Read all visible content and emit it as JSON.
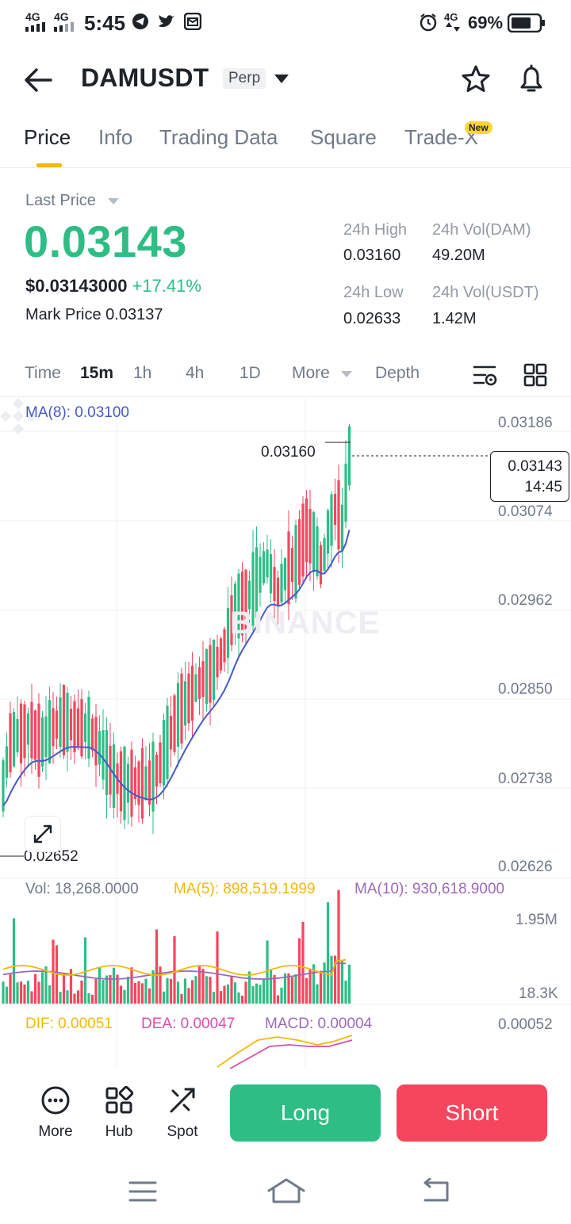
{
  "status_bar": {
    "net1": "4G",
    "net2": "4G",
    "time": "5:45",
    "net3": "4G",
    "battery": "69%"
  },
  "header": {
    "symbol": "DAMUSDT",
    "badge": "Perp"
  },
  "tabs": [
    {
      "label": "Price"
    },
    {
      "label": "Info"
    },
    {
      "label": "Trading Data"
    },
    {
      "label": "Square"
    },
    {
      "label": "Trade-X"
    }
  ],
  "new_badge": "New",
  "price": {
    "last_price_label": "Last Price",
    "last_price": "0.03143",
    "usd_price": "$0.03143000",
    "change": "+17.41%",
    "mark_price_label": "Mark Price",
    "mark_price": "0.03137",
    "stats": {
      "high_label": "24h High",
      "high": "0.03160",
      "vol_dam_label": "24h Vol(DAM)",
      "vol_dam": "49.20M",
      "low_label": "24h Low",
      "low": "0.02633",
      "vol_usdt_label": "24h Vol(USDT)",
      "vol_usdt": "1.42M"
    }
  },
  "intervals": {
    "time": "Time",
    "m15": "15m",
    "h1": "1h",
    "h4": "4h",
    "d1": "1D",
    "more": "More",
    "depth": "Depth"
  },
  "chart": {
    "ma8_text": "MA(8): 0.03100",
    "y_labels": [
      "0.03186",
      "0.03074",
      "0.02962",
      "0.02850",
      "0.02738",
      "0.02626"
    ],
    "high_marker": "0.03160",
    "low_marker": "0.02652",
    "current_price": "0.03143",
    "countdown": "14:45",
    "watermark": "BINANCE",
    "vol_text": "Vol: 18,268.0000",
    "vol_ma5_text": "MA(5): 898,519.1999",
    "vol_ma10_text": "MA(10): 930,618.9000",
    "vol_max": "1.95M",
    "vol_min": "18.3K",
    "dif_text": "DIF: 0.00051",
    "dea_text": "DEA: 0.00047",
    "macd_text": "MACD: 0.00004",
    "macd_max": "0.00052",
    "colors": {
      "up": "#2ebd85",
      "down": "#f6465d",
      "ma": "#4759c7",
      "ma5": "#f0b90b",
      "ma10": "#9c6ab8",
      "dea": "#d94fa8"
    }
  },
  "chart_data": {
    "type": "candlestick",
    "price_axis": [
      0.02626,
      0.03186
    ],
    "high": 0.0316,
    "low": 0.02652,
    "last": 0.03143,
    "ma8_last": 0.031
  },
  "actions": {
    "more": "More",
    "hub": "Hub",
    "spot": "Spot",
    "long": "Long",
    "short": "Short"
  }
}
